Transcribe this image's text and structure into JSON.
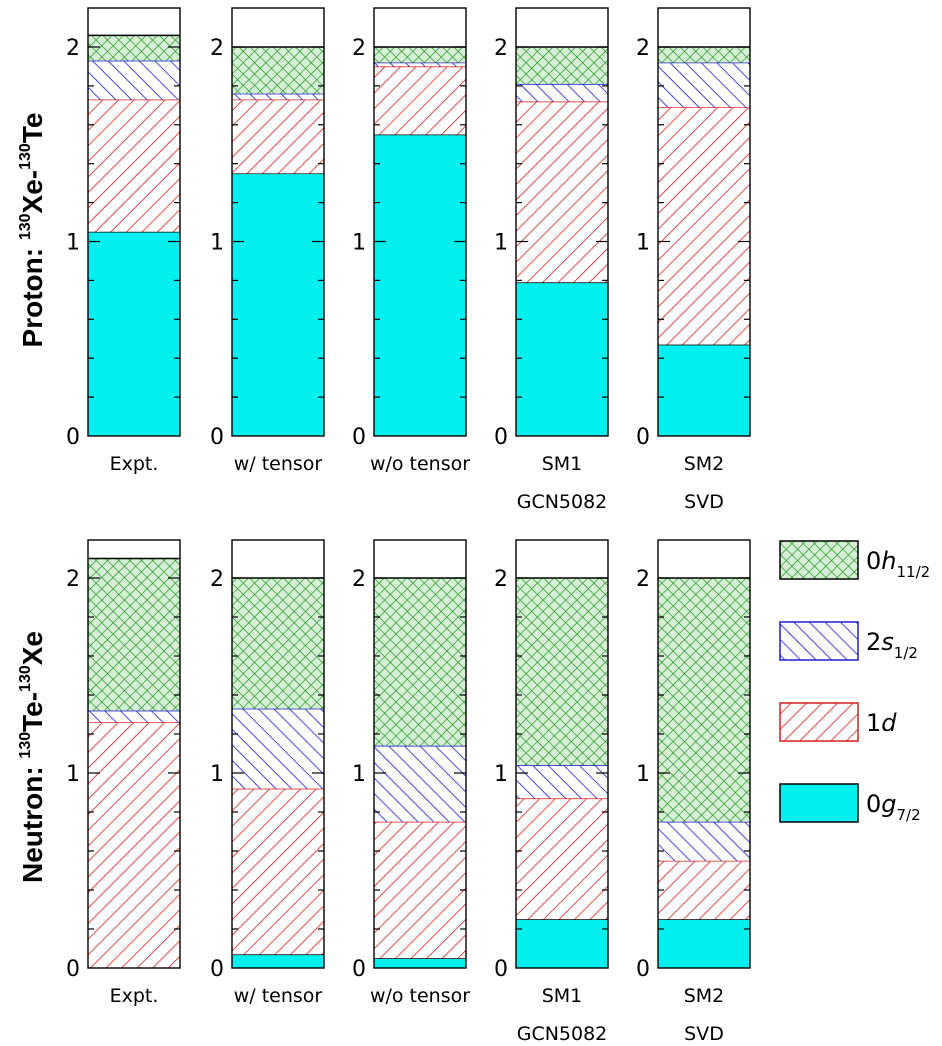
{
  "chart_data": {
    "type": "bar",
    "stacked": true,
    "components": [
      "0g7/2",
      "1d",
      "2s1/2",
      "0h11/2"
    ],
    "component_colors": {
      "0g7/2": "#00f0f0",
      "1d": "#d42020",
      "2s1/2": "#1c1cd0",
      "0h11/2": "#1a8f1a",
      "1d_bg": "#ffffff",
      "0h11/2_bg": "#d6f0d6"
    },
    "legend": {
      "entries": [
        {
          "key": "0h11/2",
          "base": "0",
          "italic": "h",
          "sub": "11/2"
        },
        {
          "key": "2s1/2",
          "base": "2",
          "italic": "s",
          "sub": "1/2"
        },
        {
          "key": "1d",
          "base": "1",
          "italic": "d",
          "sub": ""
        },
        {
          "key": "0g7/2",
          "base": "0",
          "italic": "g",
          "sub": "7/2"
        }
      ]
    },
    "ylim": [
      0,
      2.2
    ],
    "yticks": [
      "0",
      "1",
      "2"
    ],
    "rows": [
      {
        "title": "Proton:",
        "title_parts": [
          {
            "text": "Proton: ",
            "sup": false
          },
          {
            "text": "130",
            "sup": true
          },
          {
            "text": "Xe-",
            "sup": false
          },
          {
            "text": "130",
            "sup": true
          },
          {
            "text": "Te",
            "sup": false
          }
        ],
        "panels": [
          {
            "label": "Expt.",
            "sublabel": "",
            "values": {
              "0g7/2": 1.05,
              "1d": 0.68,
              "2s1/2": 0.2,
              "0h11/2": 0.13
            }
          },
          {
            "label": "w/ tensor",
            "sublabel": "",
            "values": {
              "0g7/2": 1.35,
              "1d": 0.38,
              "2s1/2": 0.03,
              "0h11/2": 0.24
            }
          },
          {
            "label": "w/o tensor",
            "sublabel": "",
            "values": {
              "0g7/2": 1.55,
              "1d": 0.35,
              "2s1/2": 0.02,
              "0h11/2": 0.08
            }
          },
          {
            "label": "SM1",
            "sublabel": "GCN5082",
            "values": {
              "0g7/2": 0.79,
              "1d": 0.93,
              "2s1/2": 0.09,
              "0h11/2": 0.19
            }
          },
          {
            "label": "SM2",
            "sublabel": "SVD",
            "values": {
              "0g7/2": 0.47,
              "1d": 1.22,
              "2s1/2": 0.23,
              "0h11/2": 0.08
            }
          }
        ]
      },
      {
        "title": "Neutron:",
        "title_parts": [
          {
            "text": "Neutron: ",
            "sup": false
          },
          {
            "text": "130",
            "sup": true
          },
          {
            "text": "Te-",
            "sup": false
          },
          {
            "text": "130",
            "sup": true
          },
          {
            "text": "Xe",
            "sup": false
          }
        ],
        "panels": [
          {
            "label": "Expt.",
            "sublabel": "",
            "values": {
              "0g7/2": 0.0,
              "1d": 1.26,
              "2s1/2": 0.06,
              "0h11/2": 0.78
            }
          },
          {
            "label": "w/ tensor",
            "sublabel": "",
            "values": {
              "0g7/2": 0.07,
              "1d": 0.85,
              "2s1/2": 0.41,
              "0h11/2": 0.67
            }
          },
          {
            "label": "w/o tensor",
            "sublabel": "",
            "values": {
              "0g7/2": 0.05,
              "1d": 0.7,
              "2s1/2": 0.39,
              "0h11/2": 0.86
            }
          },
          {
            "label": "SM1",
            "sublabel": "GCN5082",
            "values": {
              "0g7/2": 0.25,
              "1d": 0.62,
              "2s1/2": 0.17,
              "0h11/2": 0.96
            }
          },
          {
            "label": "SM2",
            "sublabel": "SVD",
            "values": {
              "0g7/2": 0.25,
              "1d": 0.3,
              "2s1/2": 0.2,
              "0h11/2": 1.25
            }
          }
        ]
      }
    ]
  }
}
